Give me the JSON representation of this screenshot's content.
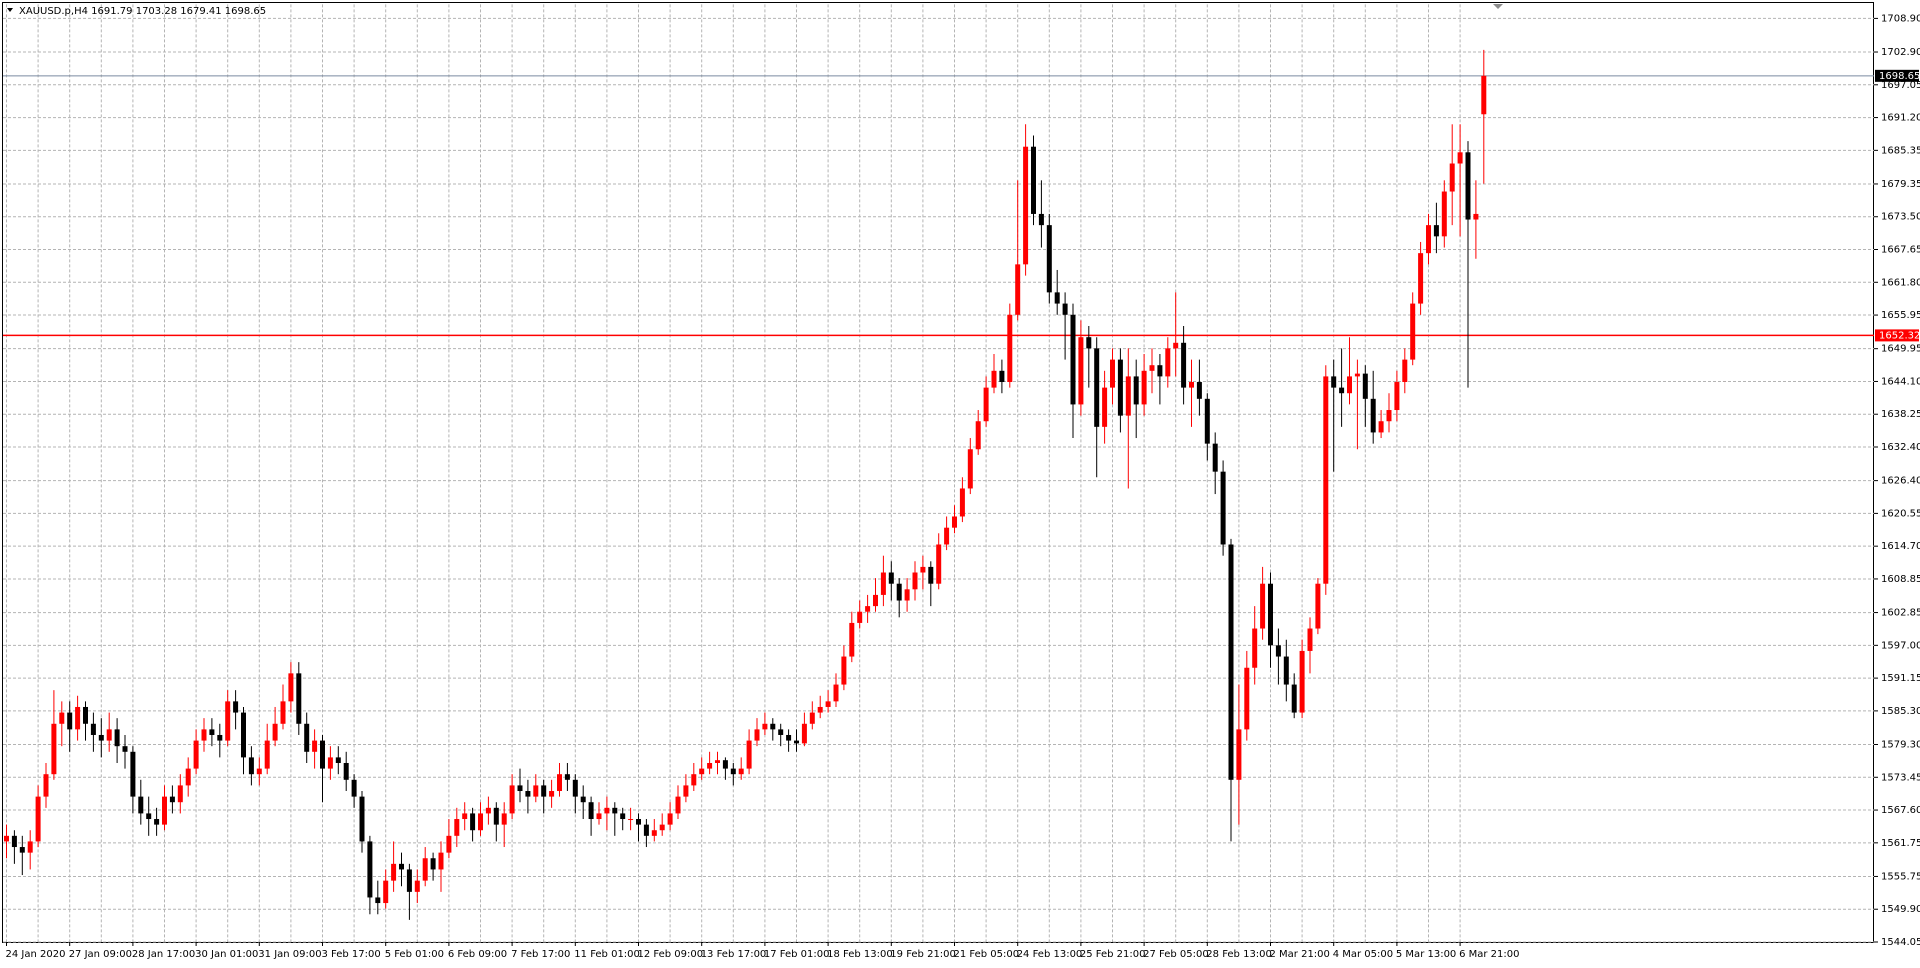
{
  "chart_data": {
    "type": "candlestick",
    "title": "XAUUSD.p,H4",
    "up_color": "#ff0000",
    "down_color": "#000000",
    "grid": true,
    "grid_color": "#b4b4b4",
    "ylim": [
      1544.05,
      1708.9
    ],
    "yticks": [
      {
        "value": 1708.9,
        "label": "1708.90"
      },
      {
        "value": 1702.9,
        "label": "1702.90"
      },
      1697.05,
      {
        "value": 1691.2,
        "label": "1691.20"
      },
      1685.35,
      1679.35,
      {
        "value": 1673.5,
        "label": "1673.50"
      },
      1667.65,
      {
        "value": 1661.8,
        "label": "1661.80"
      },
      1655.95,
      1649.95,
      {
        "value": 1644.1,
        "label": "1644.10"
      },
      1638.25,
      {
        "value": 1632.4,
        "label": "1632.40"
      },
      {
        "value": 1626.4,
        "label": "1626.40"
      },
      1620.55,
      {
        "value": 1614.7,
        "label": "1614.70"
      },
      1608.85,
      1602.85,
      {
        "value": 1597,
        "label": "1597.00"
      },
      1591.15,
      {
        "value": 1585.3,
        "label": "1585.30"
      },
      {
        "value": 1579.3,
        "label": "1579.30"
      },
      1573.45,
      {
        "value": 1567.6,
        "label": "1567.60"
      },
      1561.75,
      1555.75,
      {
        "value": 1549.9,
        "label": "1549.90"
      },
      1544.05
    ],
    "level": {
      "value": 1652.32,
      "color": "#ff0000"
    },
    "bid_color": "#7a8aa0",
    "categories": [
      "24 Jan 2020",
      null,
      null,
      null,
      null,
      null,
      null,
      null,
      "27 Jan 09:00",
      null,
      null,
      null,
      null,
      null,
      null,
      null,
      "28 Jan 17:00",
      null,
      null,
      null,
      null,
      null,
      null,
      null,
      "30 Jan 01:00",
      null,
      null,
      null,
      null,
      null,
      null,
      null,
      "31 Jan 09:00",
      null,
      null,
      null,
      null,
      null,
      null,
      null,
      "3 Feb 17:00",
      null,
      null,
      null,
      null,
      null,
      null,
      null,
      "5 Feb 01:00",
      null,
      null,
      null,
      null,
      null,
      null,
      null,
      "6 Feb 09:00",
      null,
      null,
      null,
      null,
      null,
      null,
      null,
      "7 Feb 17:00",
      null,
      null,
      null,
      null,
      null,
      null,
      null,
      "11 Feb 01:00",
      null,
      null,
      null,
      null,
      null,
      null,
      null,
      "12 Feb 09:00",
      null,
      null,
      null,
      null,
      null,
      null,
      null,
      "13 Feb 17:00",
      null,
      null,
      null,
      null,
      null,
      null,
      null,
      "17 Feb 01:00",
      null,
      null,
      null,
      null,
      null,
      null,
      null,
      "18 Feb 13:00",
      null,
      null,
      null,
      null,
      null,
      null,
      null,
      "19 Feb 21:00",
      null,
      null,
      null,
      null,
      null,
      null,
      null,
      "21 Feb 05:00",
      null,
      null,
      null,
      null,
      null,
      null,
      null,
      "24 Feb 13:00",
      null,
      null,
      null,
      null,
      null,
      null,
      null,
      "25 Feb 21:00",
      null,
      null,
      null,
      null,
      null,
      null,
      null,
      "27 Feb 05:00",
      null,
      null,
      null,
      null,
      null,
      null,
      null,
      "28 Feb 13:00",
      null,
      null,
      null,
      null,
      null,
      null,
      null,
      "2 Mar 21:00",
      null,
      null,
      null,
      null,
      null,
      null,
      null,
      "4 Mar 05:00",
      null,
      null,
      null,
      null,
      null,
      null,
      null,
      "5 Mar 13:00",
      null,
      null,
      null,
      null,
      null,
      null,
      null,
      "6 Mar 21:00",
      null,
      null,
      null
    ],
    "candles": [
      [
        1562,
        1565,
        1559,
        1563
      ],
      [
        1563,
        1564,
        1558,
        1561
      ],
      [
        1561,
        1563,
        1556,
        1560
      ],
      [
        1560,
        1564,
        1557,
        1562
      ],
      [
        1562,
        1572,
        1561,
        1570
      ],
      [
        1570,
        1576,
        1568,
        1574
      ],
      [
        1574,
        1589,
        1573,
        1583
      ],
      [
        1583,
        1587,
        1579,
        1585
      ],
      [
        1585,
        1587,
        1578,
        1582
      ],
      [
        1582,
        1588,
        1580,
        1586
      ],
      [
        1586,
        1587,
        1580,
        1583
      ],
      [
        1583,
        1585,
        1578,
        1581
      ],
      [
        1581,
        1584,
        1577,
        1580
      ],
      [
        1580,
        1585,
        1578,
        1582
      ],
      [
        1582,
        1584,
        1576,
        1579
      ],
      [
        1579,
        1581,
        1575,
        1578
      ],
      [
        1578,
        1579,
        1567,
        1570
      ],
      [
        1570,
        1573,
        1565,
        1567
      ],
      [
        1567,
        1570,
        1563,
        1566
      ],
      [
        1566,
        1568,
        1563,
        1565
      ],
      [
        1565,
        1572,
        1564,
        1570
      ],
      [
        1570,
        1572,
        1567,
        1569
      ],
      [
        1569,
        1574,
        1567,
        1572
      ],
      [
        1572,
        1577,
        1570,
        1575
      ],
      [
        1575,
        1582,
        1574,
        1580
      ],
      [
        1580,
        1584,
        1578,
        1582
      ],
      [
        1582,
        1584,
        1579,
        1581
      ],
      [
        1581,
        1583,
        1577,
        1580
      ],
      [
        1580,
        1589,
        1579,
        1587
      ],
      [
        1587,
        1589,
        1582,
        1585
      ],
      [
        1585,
        1586,
        1574,
        1577
      ],
      [
        1577,
        1579,
        1572,
        1574
      ],
      [
        1574,
        1577,
        1572,
        1575
      ],
      [
        1575,
        1583,
        1574,
        1580
      ],
      [
        1580,
        1586,
        1579,
        1583
      ],
      [
        1583,
        1590,
        1582,
        1587
      ],
      [
        1587,
        1594,
        1585,
        1592
      ],
      [
        1592,
        1594,
        1581,
        1583
      ],
      [
        1583,
        1585,
        1576,
        1578
      ],
      [
        1578,
        1582,
        1575,
        1580
      ],
      [
        1580,
        1581,
        1569,
        1575
      ],
      [
        1575,
        1579,
        1573,
        1577
      ],
      [
        1577,
        1579,
        1574,
        1576
      ],
      [
        1576,
        1578,
        1571,
        1573
      ],
      [
        1573,
        1574,
        1568,
        1570
      ],
      [
        1570,
        1571,
        1560,
        1562
      ],
      [
        1562,
        1563,
        1549,
        1552
      ],
      [
        1552,
        1555,
        1549,
        1551
      ],
      [
        1551,
        1557,
        1550,
        1555
      ],
      [
        1555,
        1562,
        1553,
        1558
      ],
      [
        1558,
        1560,
        1554,
        1557
      ],
      [
        1557,
        1558,
        1548,
        1553
      ],
      [
        1553,
        1557,
        1551,
        1555
      ],
      [
        1555,
        1561,
        1554,
        1559
      ],
      [
        1559,
        1560,
        1555,
        1557
      ],
      [
        1557,
        1562,
        1553,
        1560
      ],
      [
        1560,
        1566,
        1559,
        1563
      ],
      [
        1563,
        1568,
        1561,
        1566
      ],
      [
        1566,
        1569,
        1564,
        1567
      ],
      [
        1567,
        1568,
        1562,
        1564
      ],
      [
        1564,
        1569,
        1563,
        1567
      ],
      [
        1567,
        1570,
        1565,
        1568
      ],
      [
        1568,
        1569,
        1562,
        1565
      ],
      [
        1565,
        1569,
        1561,
        1567
      ],
      [
        1567,
        1574,
        1566,
        1572
      ],
      [
        1572,
        1575,
        1569,
        1571
      ],
      [
        1571,
        1573,
        1567,
        1570
      ],
      [
        1570,
        1574,
        1569,
        1572
      ],
      [
        1572,
        1573,
        1567,
        1570
      ],
      [
        1570,
        1573,
        1568,
        1571
      ],
      [
        1571,
        1576,
        1570,
        1574
      ],
      [
        1574,
        1576,
        1571,
        1573
      ],
      [
        1573,
        1574,
        1567,
        1570
      ],
      [
        1570,
        1572,
        1566,
        1569
      ],
      [
        1569,
        1570,
        1563,
        1566
      ],
      [
        1566,
        1569,
        1565,
        1567
      ],
      [
        1567,
        1570,
        1564,
        1568
      ],
      [
        1568,
        1569,
        1563,
        1567
      ],
      [
        1567,
        1568,
        1564,
        1566
      ],
      [
        1566,
        1568,
        1564,
        1566
      ],
      [
        1566,
        1567,
        1562,
        1565
      ],
      [
        1565,
        1566,
        1561,
        1563
      ],
      [
        1563,
        1566,
        1562,
        1564
      ],
      [
        1564,
        1567,
        1563,
        1565
      ],
      [
        1565,
        1569,
        1564,
        1567
      ],
      [
        1567,
        1572,
        1566,
        1570
      ],
      [
        1570,
        1574,
        1569,
        1572
      ],
      [
        1572,
        1576,
        1571,
        1574
      ],
      [
        1574,
        1577,
        1573,
        1575
      ],
      [
        1575,
        1578,
        1574,
        1576
      ],
      [
        1576,
        1578,
        1574,
        1576.5
      ],
      [
        1576.5,
        1577,
        1573,
        1575
      ],
      [
        1575,
        1576,
        1572,
        1574
      ],
      [
        1574,
        1577,
        1573,
        1575
      ],
      [
        1575,
        1582,
        1574,
        1580
      ],
      [
        1580,
        1584,
        1579,
        1582
      ],
      [
        1582,
        1585,
        1581,
        1583
      ],
      [
        1583,
        1584,
        1580,
        1582
      ],
      [
        1582,
        1583,
        1579,
        1581
      ],
      [
        1581,
        1582,
        1578,
        1580
      ],
      [
        1580,
        1582,
        1578,
        1579.5
      ],
      [
        1579.5,
        1585,
        1579,
        1583
      ],
      [
        1583,
        1587,
        1582,
        1585
      ],
      [
        1585,
        1588,
        1584,
        1586
      ],
      [
        1586,
        1589,
        1585,
        1587
      ],
      [
        1587,
        1592,
        1586,
        1590
      ],
      [
        1590,
        1597,
        1589,
        1595
      ],
      [
        1595,
        1603,
        1594,
        1601
      ],
      [
        1601,
        1605,
        1600,
        1603
      ],
      [
        1603,
        1606,
        1601,
        1604
      ],
      [
        1604,
        1609,
        1603,
        1606
      ],
      [
        1606,
        1613,
        1604,
        1610
      ],
      [
        1610,
        1612,
        1605,
        1608
      ],
      [
        1608,
        1609,
        1602,
        1605
      ],
      [
        1605,
        1609,
        1603,
        1607
      ],
      [
        1607,
        1612,
        1605,
        1610
      ],
      [
        1610,
        1613,
        1607,
        1611
      ],
      [
        1611,
        1612,
        1604,
        1608
      ],
      [
        1608,
        1617,
        1607,
        1615
      ],
      [
        1615,
        1620,
        1614,
        1618
      ],
      [
        1618,
        1622,
        1617,
        1620
      ],
      [
        1620,
        1627,
        1619,
        1625
      ],
      [
        1625,
        1634,
        1624,
        1632
      ],
      [
        1632,
        1639,
        1631,
        1637
      ],
      [
        1637,
        1645,
        1636,
        1643
      ],
      [
        1643,
        1649,
        1642,
        1646
      ],
      [
        1646,
        1648,
        1642,
        1644
      ],
      [
        1644,
        1658,
        1643,
        1656
      ],
      [
        1656,
        1680,
        1655,
        1665
      ],
      [
        1665,
        1690,
        1663,
        1686
      ],
      [
        1686,
        1688,
        1672,
        1674
      ],
      [
        1674,
        1680,
        1668,
        1672
      ],
      [
        1672,
        1674,
        1658,
        1660
      ],
      [
        1660,
        1664,
        1656,
        1658
      ],
      [
        1658,
        1660,
        1648,
        1656
      ],
      [
        1656,
        1658,
        1634,
        1640
      ],
      [
        1640,
        1655,
        1638,
        1652
      ],
      [
        1652,
        1654,
        1643,
        1650
      ],
      [
        1650,
        1652,
        1627,
        1636
      ],
      [
        1636,
        1646,
        1633,
        1643
      ],
      [
        1643,
        1650,
        1640,
        1648
      ],
      [
        1648,
        1650,
        1635,
        1638
      ],
      [
        1638,
        1650,
        1625,
        1645
      ],
      [
        1645,
        1648,
        1634,
        1640
      ],
      [
        1640,
        1649,
        1638,
        1646
      ],
      [
        1646,
        1650,
        1642,
        1647
      ],
      [
        1647,
        1649,
        1640,
        1645
      ],
      [
        1645,
        1652,
        1643,
        1650
      ],
      [
        1650,
        1660,
        1645,
        1651
      ],
      [
        1651,
        1654,
        1640,
        1643
      ],
      [
        1643,
        1648,
        1636,
        1644
      ],
      [
        1644,
        1648,
        1638,
        1641
      ],
      [
        1641,
        1642,
        1630,
        1633
      ],
      [
        1633,
        1635,
        1624,
        1628
      ],
      [
        1628,
        1630,
        1613,
        1615
      ],
      [
        1615,
        1616,
        1562,
        1573
      ],
      [
        1573,
        1590,
        1565,
        1582
      ],
      [
        1582,
        1596,
        1580,
        1593
      ],
      [
        1593,
        1604,
        1590,
        1600
      ],
      [
        1600,
        1611,
        1598,
        1608
      ],
      [
        1608,
        1610,
        1593,
        1597
      ],
      [
        1597,
        1600,
        1590,
        1595
      ],
      [
        1595,
        1598,
        1587,
        1590
      ],
      [
        1590,
        1592,
        1584,
        1585
      ],
      [
        1585,
        1598,
        1584,
        1596
      ],
      [
        1596,
        1602,
        1592,
        1600
      ],
      [
        1600,
        1609,
        1599,
        1608
      ],
      [
        1608,
        1647,
        1606,
        1645
      ],
      [
        1645,
        1648,
        1628,
        1643
      ],
      [
        1643,
        1650,
        1636,
        1642
      ],
      [
        1642,
        1652,
        1640,
        1645
      ],
      [
        1645,
        1648,
        1632,
        1645.5
      ],
      [
        1645.5,
        1647,
        1636,
        1641
      ],
      [
        1641,
        1646,
        1633,
        1635
      ],
      [
        1635,
        1639,
        1634,
        1637
      ],
      [
        1637,
        1642,
        1635,
        1639
      ],
      [
        1639,
        1646,
        1637,
        1644
      ],
      [
        1644,
        1650,
        1642,
        1648
      ],
      [
        1648,
        1660,
        1647,
        1658
      ],
      [
        1658,
        1669,
        1656,
        1667
      ],
      [
        1667,
        1674,
        1665,
        1672
      ],
      [
        1672,
        1676,
        1667,
        1670
      ],
      [
        1670,
        1680,
        1668,
        1678
      ],
      [
        1678,
        1690,
        1672,
        1683
      ],
      [
        1683,
        1690,
        1670,
        1685
      ],
      [
        1685,
        1687,
        1643,
        1673
      ],
      [
        1673,
        1680,
        1666,
        1674
      ],
      [
        1691.79,
        1703.28,
        1679.41,
        1698.65
      ]
    ]
  }
}
